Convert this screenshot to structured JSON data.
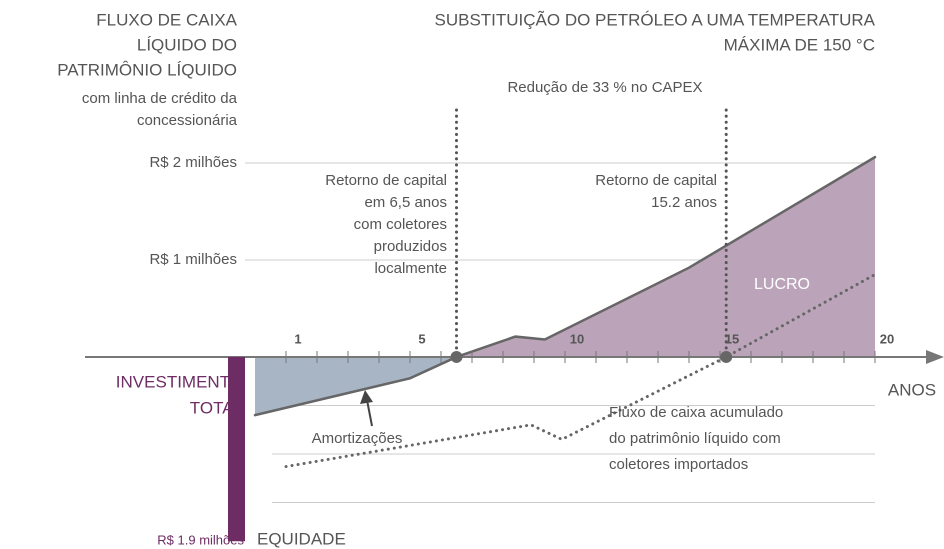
{
  "chart_data": {
    "type": "line",
    "title": [
      "SUBSTITUIÇÃO DO PETRÓLEO A UMA TEMPERATURA",
      "MÁXIMA DE  150 °C"
    ],
    "y_axis_title": [
      "FLUXO DE CAIXA",
      "LÍQUIDO DO",
      "PATRIMÔNIO LÍQUIDO"
    ],
    "y_axis_subtitle": [
      "com linha de crédito da",
      "concessionária"
    ],
    "x_axis_label": "ANOS",
    "xlim": [
      0,
      22
    ],
    "ylim": [
      -1.98,
      2.2
    ],
    "xticks": [
      1,
      5,
      10,
      15,
      20
    ],
    "minor_xticks": [
      2,
      3,
      4,
      6,
      7,
      8,
      9,
      11,
      12,
      13,
      14,
      16,
      17,
      18,
      19
    ],
    "yticks": [
      {
        "value": 1,
        "label": "R$ 1 milhões"
      },
      {
        "value": 2,
        "label": "R$ 2 milhões"
      }
    ],
    "grid_lines": [
      -0.5,
      -1,
      -1.5
    ],
    "series": [
      {
        "color": "#666666",
        "x": [
          0,
          5,
          6.5,
          8.4,
          9.35,
          14,
          20
        ],
        "values": [
          -0.6,
          -0.22,
          0,
          0.21,
          0.18,
          0.92,
          2.06
        ],
        "negative_fill": "#a8b5c5",
        "positive_fill": "#bba4b9"
      },
      {
        "color": "#666666",
        "dotted": true,
        "x": [
          1,
          8.9,
          9.9,
          15.2,
          20
        ],
        "values": [
          -1.13,
          -0.7,
          -0.85,
          0,
          0.85
        ]
      }
    ],
    "investment": {
      "value": -1.9,
      "label": "R$ 1.9 milhões",
      "color": "#6e2c64",
      "title": [
        "INVESTIMENTO",
        "TOTAL"
      ],
      "caption": "EQUIDADE"
    },
    "payback_years": [
      6.5,
      15.2
    ],
    "capex_note": "Redução de 33 % no CAPEX",
    "payback_local": [
      "Retorno de capital",
      "em 6,5 anos",
      "com coletores",
      "produzidos",
      "localmente"
    ],
    "payback_imported": [
      "Retorno de capital",
      "15.2 anos"
    ],
    "profit_label": "LUCRO",
    "amortization_label": "Amortizações",
    "dotted_label": [
      "Fluxo de caixa acumulado",
      "do patrimônio líquido com",
      "coletores importados"
    ]
  }
}
